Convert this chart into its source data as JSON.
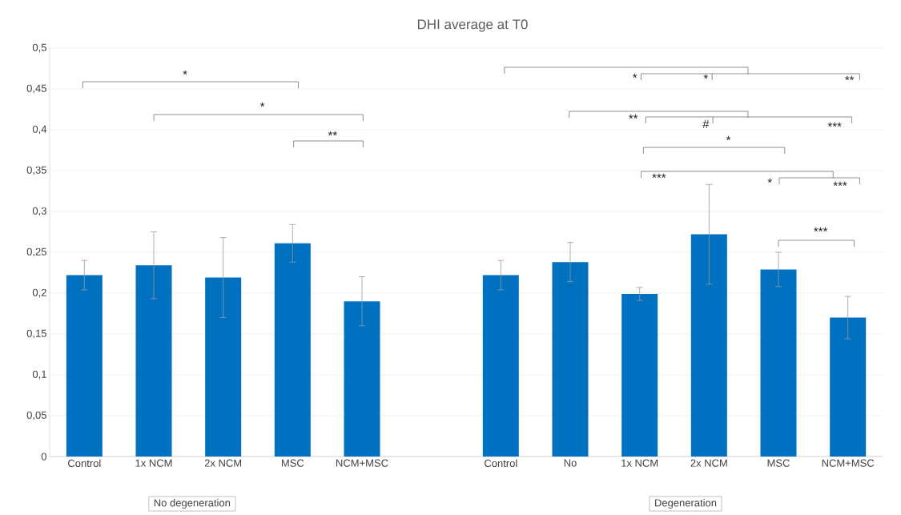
{
  "chart_data": {
    "type": "bar",
    "title": "DHI average at T0",
    "categories": [
      "Control",
      "1x NCM",
      "2x NCM",
      "MSC",
      "NCM+MSC",
      null,
      "Control",
      "No",
      "1x NCM",
      "2x NCM",
      "MSC",
      "NCM+MSC"
    ],
    "values": [
      0.222,
      0.234,
      0.219,
      0.261,
      0.19,
      null,
      0.222,
      0.238,
      0.199,
      0.272,
      0.229,
      0.17
    ],
    "errors": [
      0.018,
      0.041,
      0.049,
      0.023,
      0.03,
      null,
      0.018,
      0.024,
      0.008,
      0.061,
      0.021,
      0.026
    ],
    "color": "#0070c0",
    "ylim": [
      0,
      0.5
    ],
    "yticks": [
      0,
      {
        "value": 0.05,
        "label": "0,05"
      },
      {
        "value": 0.1,
        "label": "0,1"
      },
      {
        "value": 0.15,
        "label": "0,15"
      },
      {
        "value": 0.2,
        "label": "0,2"
      },
      {
        "value": 0.25,
        "label": "0,25"
      },
      {
        "value": 0.3,
        "label": "0,3"
      },
      {
        "value": 0.35,
        "label": "0,35"
      },
      {
        "value": 0.4,
        "label": "0,4"
      },
      {
        "value": 0.45,
        "label": "0,45"
      },
      {
        "value": 0.5,
        "label": "0,5"
      }
    ],
    "grid": "y",
    "annotations": [
      "*",
      "*",
      "**",
      "*",
      "*",
      "**",
      "**",
      "#",
      "***",
      "*",
      "***",
      "*",
      "***",
      "***",
      "No degeneration",
      "Degeneration"
    ]
  }
}
